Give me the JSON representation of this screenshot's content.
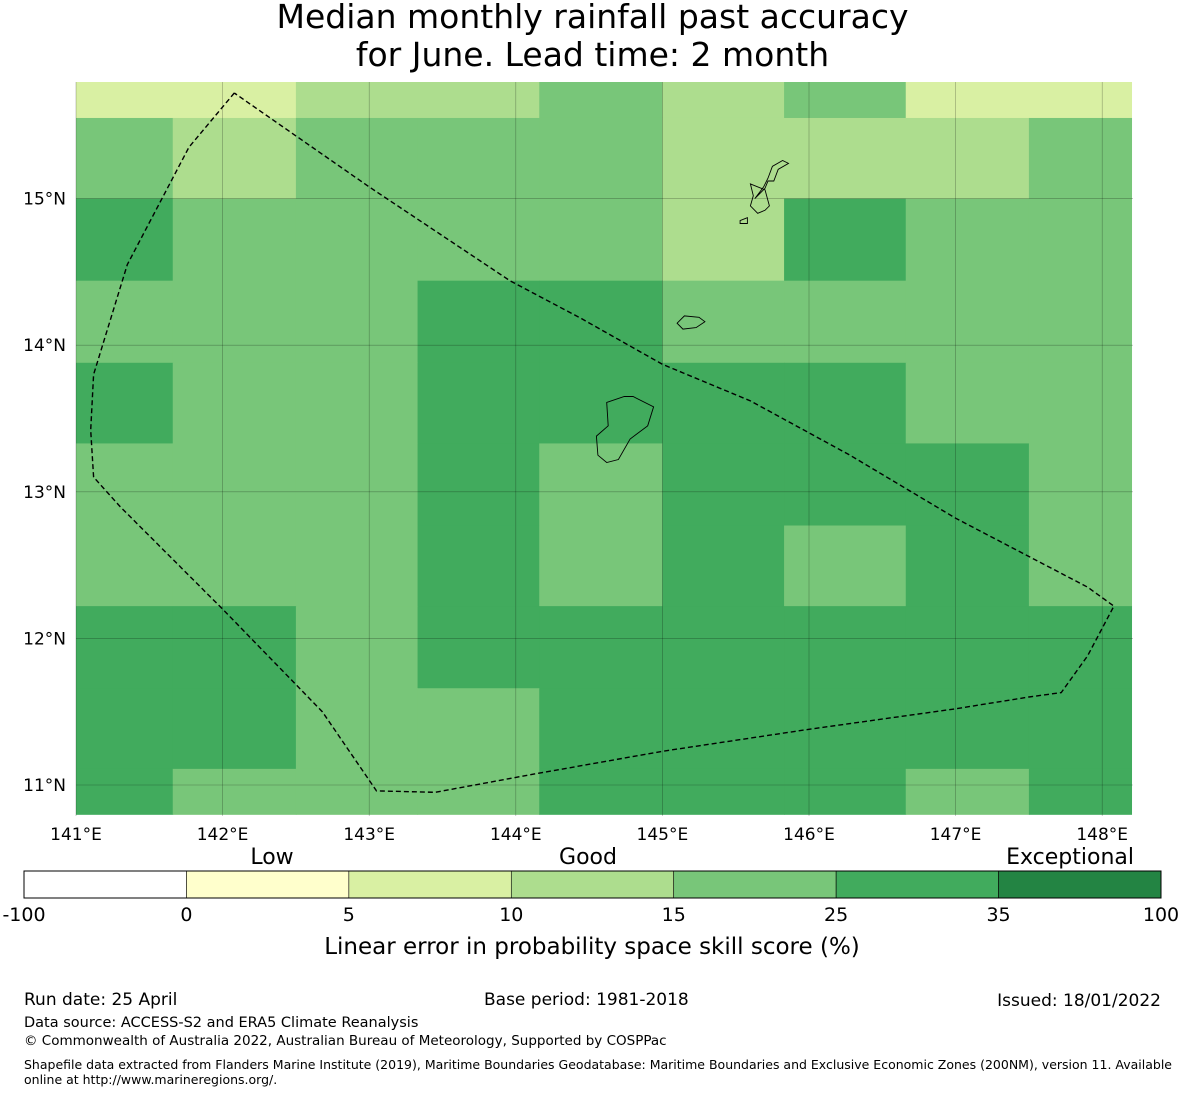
{
  "title_lines": [
    "Median monthly rainfall past accuracy",
    "for June. Lead time: 2 month"
  ],
  "map": {
    "lon_range": [
      141.0,
      148.2
    ],
    "lat_range": [
      10.8,
      15.8
    ],
    "lon_tick_labels": [
      "141°E",
      "142°E",
      "143°E",
      "144°E",
      "145°E",
      "146°E",
      "147°E",
      "148°E"
    ],
    "lat_tick_labels": [
      "11°N",
      "12°N",
      "13°N",
      "14°N",
      "15°N"
    ],
    "grid_lines": true,
    "grid_columns_lon": [
      141.0,
      141.66,
      142.5,
      143.33,
      144.16,
      145.0,
      145.83,
      146.66,
      147.5,
      148.2
    ],
    "grid_rows_lat": [
      15.8,
      15.55,
      15.0,
      14.44,
      13.88,
      13.33,
      12.77,
      12.22,
      11.66,
      11.11,
      10.8
    ],
    "cell_category": [
      [
        2,
        2,
        3,
        3,
        4,
        3,
        4,
        2,
        2
      ],
      [
        4,
        3,
        4,
        4,
        4,
        3,
        3,
        3,
        4
      ],
      [
        5,
        4,
        4,
        4,
        4,
        3,
        5,
        4,
        4
      ],
      [
        4,
        4,
        4,
        5,
        5,
        4,
        4,
        4,
        4
      ],
      [
        5,
        4,
        4,
        5,
        5,
        5,
        5,
        4,
        4
      ],
      [
        4,
        4,
        4,
        5,
        4,
        5,
        5,
        5,
        4
      ],
      [
        4,
        4,
        4,
        5,
        4,
        5,
        4,
        5,
        4
      ],
      [
        5,
        5,
        4,
        5,
        5,
        5,
        5,
        5,
        5
      ],
      [
        5,
        5,
        4,
        4,
        5,
        5,
        5,
        5,
        5
      ],
      [
        5,
        4,
        4,
        4,
        5,
        5,
        5,
        4,
        5
      ]
    ],
    "eez_boundary_lonlat": [
      [
        142.08,
        15.72
      ],
      [
        141.77,
        15.35
      ],
      [
        141.35,
        14.55
      ],
      [
        141.12,
        13.8
      ],
      [
        141.1,
        13.42
      ],
      [
        141.12,
        13.1
      ],
      [
        141.3,
        12.9
      ],
      [
        142.0,
        12.2
      ],
      [
        142.68,
        11.5
      ],
      [
        143.05,
        10.96
      ],
      [
        143.45,
        10.95
      ],
      [
        144.1,
        11.07
      ],
      [
        145.0,
        11.23
      ],
      [
        146.0,
        11.38
      ],
      [
        147.0,
        11.52
      ],
      [
        147.5,
        11.6
      ],
      [
        147.72,
        11.63
      ],
      [
        147.9,
        11.88
      ],
      [
        148.08,
        12.22
      ],
      [
        147.9,
        12.35
      ],
      [
        147.0,
        12.82
      ],
      [
        146.28,
        13.25
      ],
      [
        145.6,
        13.62
      ],
      [
        145.0,
        13.87
      ],
      [
        144.45,
        14.18
      ],
      [
        143.96,
        14.44
      ],
      [
        143.0,
        15.08
      ],
      [
        142.08,
        15.72
      ]
    ],
    "island_outlines_lonlat": [
      [
        [
          144.62,
          13.61
        ],
        [
          144.74,
          13.65
        ],
        [
          144.8,
          13.65
        ],
        [
          144.94,
          13.58
        ],
        [
          144.9,
          13.45
        ],
        [
          144.78,
          13.36
        ],
        [
          144.7,
          13.22
        ],
        [
          144.62,
          13.2
        ],
        [
          144.56,
          13.25
        ],
        [
          144.55,
          13.38
        ],
        [
          144.63,
          13.45
        ],
        [
          144.62,
          13.61
        ]
      ],
      [
        [
          145.1,
          14.15
        ],
        [
          145.15,
          14.2
        ],
        [
          145.25,
          14.19
        ],
        [
          145.29,
          14.16
        ],
        [
          145.23,
          14.12
        ],
        [
          145.14,
          14.11
        ],
        [
          145.1,
          14.15
        ]
      ],
      [
        [
          145.6,
          15.1
        ],
        [
          145.7,
          15.06
        ],
        [
          145.73,
          14.95
        ],
        [
          145.7,
          14.92
        ],
        [
          145.65,
          14.9
        ],
        [
          145.6,
          14.95
        ],
        [
          145.62,
          15.02
        ],
        [
          145.6,
          15.1
        ]
      ],
      [
        [
          145.63,
          15.0
        ],
        [
          145.7,
          15.07
        ],
        [
          145.72,
          15.12
        ],
        [
          145.76,
          15.12
        ],
        [
          145.79,
          15.2
        ],
        [
          145.86,
          15.24
        ],
        [
          145.82,
          15.26
        ],
        [
          145.75,
          15.22
        ],
        [
          145.72,
          15.14
        ],
        [
          145.69,
          15.08
        ],
        [
          145.63,
          15.0
        ]
      ],
      [
        [
          145.53,
          14.85
        ],
        [
          145.58,
          14.87
        ],
        [
          145.58,
          14.83
        ],
        [
          145.53,
          14.83
        ],
        [
          145.53,
          14.85
        ]
      ]
    ]
  },
  "colorbar": {
    "category_labels": [
      "Low",
      "Good",
      "Exceptional"
    ],
    "tick_labels": [
      "-100",
      "0",
      "5",
      "10",
      "15",
      "25",
      "35",
      "100"
    ],
    "colors": [
      "#ffffff",
      "#ffffcc",
      "#d9f0a3",
      "#addd8e",
      "#78c679",
      "#41ab5d",
      "#238443"
    ],
    "xlabel": "Linear error in probability space skill score (%)"
  },
  "footer": {
    "run_date": "Run date: 25 April",
    "base_period": "Base period: 1981-2018",
    "issued": "Issued: 18/01/2022",
    "data_source": "Data source: ACCESS-S2 and ERA5 Climate Reanalysis",
    "copyright": "© Commonwealth of Australia 2022, Australian Bureau of Meteorology, Supported by COSPPac",
    "shapefile_note": "Shapefile data extracted from Flanders Marine Institute (2019), Maritime Boundaries Geodatabase: Maritime Boundaries and Exclusive Economic Zones (200NM), version 11. Available online at http://www.marineregions.org/."
  }
}
